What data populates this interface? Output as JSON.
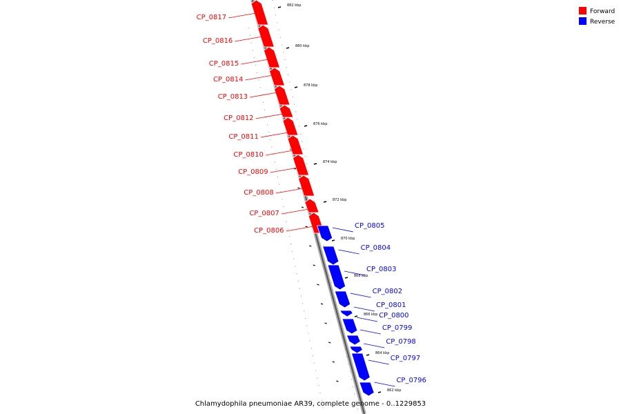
{
  "legend": {
    "items": [
      {
        "label": "Forward",
        "color": "#ff0000"
      },
      {
        "label": "Reverse",
        "color": "#0000ff"
      }
    ]
  },
  "caption": "Chlamydophila pneumoniae AR39, complete genome - 0..1229853",
  "ticks": [
    {
      "label": "882 kbp"
    },
    {
      "label": "880 kbp"
    },
    {
      "label": "878 kbp"
    },
    {
      "label": "876 kbp"
    },
    {
      "label": "874 kbp"
    },
    {
      "label": "872 kbp"
    },
    {
      "label": "870 kbp"
    },
    {
      "label": "868 kbp"
    },
    {
      "label": "866 kbp"
    },
    {
      "label": "864 kbp"
    },
    {
      "label": "862 kbp"
    }
  ],
  "genes": [
    {
      "name": "CP_0817",
      "strand": "forward"
    },
    {
      "name": "CP_0816",
      "strand": "forward"
    },
    {
      "name": "CP_0815",
      "strand": "forward"
    },
    {
      "name": "CP_0814",
      "strand": "forward"
    },
    {
      "name": "CP_0813",
      "strand": "forward"
    },
    {
      "name": "CP_0812",
      "strand": "forward"
    },
    {
      "name": "CP_0811",
      "strand": "forward"
    },
    {
      "name": "CP_0810",
      "strand": "forward"
    },
    {
      "name": "CP_0809",
      "strand": "forward"
    },
    {
      "name": "CP_0808",
      "strand": "forward"
    },
    {
      "name": "CP_0807",
      "strand": "forward"
    },
    {
      "name": "CP_0806",
      "strand": "forward"
    },
    {
      "name": "CP_0805",
      "strand": "reverse"
    },
    {
      "name": "CP_0804",
      "strand": "reverse"
    },
    {
      "name": "CP_0803",
      "strand": "reverse"
    },
    {
      "name": "CP_0802",
      "strand": "reverse"
    },
    {
      "name": "CP_0801",
      "strand": "reverse"
    },
    {
      "name": "CP_0800",
      "strand": "reverse"
    },
    {
      "name": "CP_0799",
      "strand": "reverse"
    },
    {
      "name": "CP_0798",
      "strand": "reverse"
    },
    {
      "name": "CP_0797",
      "strand": "reverse"
    },
    {
      "name": "CP_0796",
      "strand": "reverse"
    }
  ]
}
